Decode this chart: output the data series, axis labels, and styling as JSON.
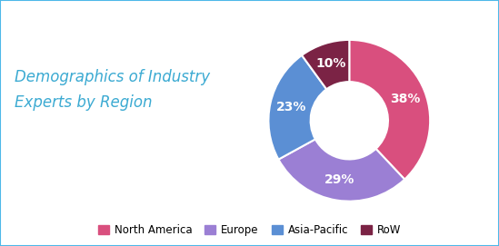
{
  "title": "Demographics of Industry\nExperts by Region",
  "title_color": "#3baad2",
  "slices": [
    38,
    29,
    23,
    10
  ],
  "labels": [
    "38%",
    "29%",
    "23%",
    "10%"
  ],
  "legend_labels": [
    "North America",
    "Europe",
    "Asia-Pacific",
    "RoW"
  ],
  "colors": [
    "#d94f7e",
    "#9b7fd4",
    "#5b8fd4",
    "#7b2345"
  ],
  "background_color": "#ffffff",
  "border_color": "#4db8e8",
  "text_color": "#ffffff",
  "label_fontsize": 10,
  "title_fontsize": 12,
  "legend_fontsize": 8.5,
  "startangle": 90
}
